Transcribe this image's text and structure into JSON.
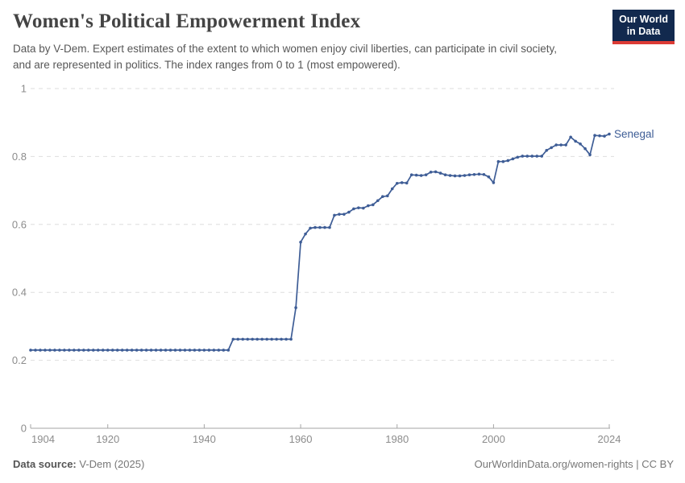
{
  "header": {
    "title": "Women's Political Empowerment Index",
    "subtitle": "Data by V-Dem. Expert estimates of the extent to which women enjoy civil liberties, can participate in civil society, and are represented in politics. The index ranges from 0 to 1 (most empowered).",
    "logo": {
      "line1": "Our World",
      "line2": "in Data"
    }
  },
  "footer": {
    "source_label": "Data source:",
    "source_value": "V-Dem (2025)",
    "link": "OurWorldinData.org/women-rights | CC BY"
  },
  "colors": {
    "series": "#3e5d96",
    "gridline": "#dedede",
    "axis": "#a6a6a6",
    "tick_label": "#8c8c8c",
    "logo_navy": "#12294e",
    "logo_red": "#dc3b35"
  },
  "chart_data": {
    "type": "line",
    "title": "Women's Political Empowerment Index",
    "xlabel": "",
    "ylabel": "",
    "xlim": [
      1904,
      2024
    ],
    "ylim": [
      0,
      1
    ],
    "grid": "dashed-horizontal",
    "legend_position": "end-of-line-label",
    "x_ticks": [
      1904,
      1920,
      1940,
      1960,
      1980,
      2000,
      2024
    ],
    "y_ticks": [
      0,
      0.2,
      0.4,
      0.6,
      0.8,
      1
    ],
    "y_tick_labels": [
      "0",
      "0.2",
      "0.4",
      "0.6",
      "0.8",
      "1"
    ],
    "start_year": 1904,
    "end_year": 2024,
    "series": [
      {
        "name": "Senegal",
        "color": "#3e5d96",
        "values": [
          0.23,
          0.23,
          0.23,
          0.23,
          0.23,
          0.23,
          0.23,
          0.23,
          0.23,
          0.23,
          0.23,
          0.23,
          0.23,
          0.23,
          0.23,
          0.23,
          0.23,
          0.23,
          0.23,
          0.23,
          0.23,
          0.23,
          0.23,
          0.23,
          0.23,
          0.23,
          0.23,
          0.23,
          0.23,
          0.23,
          0.23,
          0.23,
          0.23,
          0.23,
          0.23,
          0.23,
          0.23,
          0.23,
          0.23,
          0.23,
          0.23,
          0.23,
          0.262,
          0.262,
          0.262,
          0.262,
          0.262,
          0.262,
          0.262,
          0.262,
          0.262,
          0.262,
          0.262,
          0.262,
          0.262,
          0.355,
          0.548,
          0.572,
          0.589,
          0.591,
          0.591,
          0.591,
          0.591,
          0.627,
          0.63,
          0.63,
          0.636,
          0.646,
          0.649,
          0.648,
          0.655,
          0.658,
          0.67,
          0.682,
          0.684,
          0.705,
          0.721,
          0.723,
          0.722,
          0.746,
          0.745,
          0.744,
          0.746,
          0.754,
          0.755,
          0.751,
          0.746,
          0.744,
          0.743,
          0.743,
          0.744,
          0.746,
          0.747,
          0.748,
          0.747,
          0.74,
          0.723,
          0.785,
          0.785,
          0.788,
          0.793,
          0.798,
          0.801,
          0.801,
          0.801,
          0.801,
          0.801,
          0.818,
          0.826,
          0.834,
          0.834,
          0.834,
          0.857,
          0.845,
          0.837,
          0.823,
          0.805,
          0.862,
          0.861,
          0.86,
          0.866
        ]
      }
    ]
  }
}
